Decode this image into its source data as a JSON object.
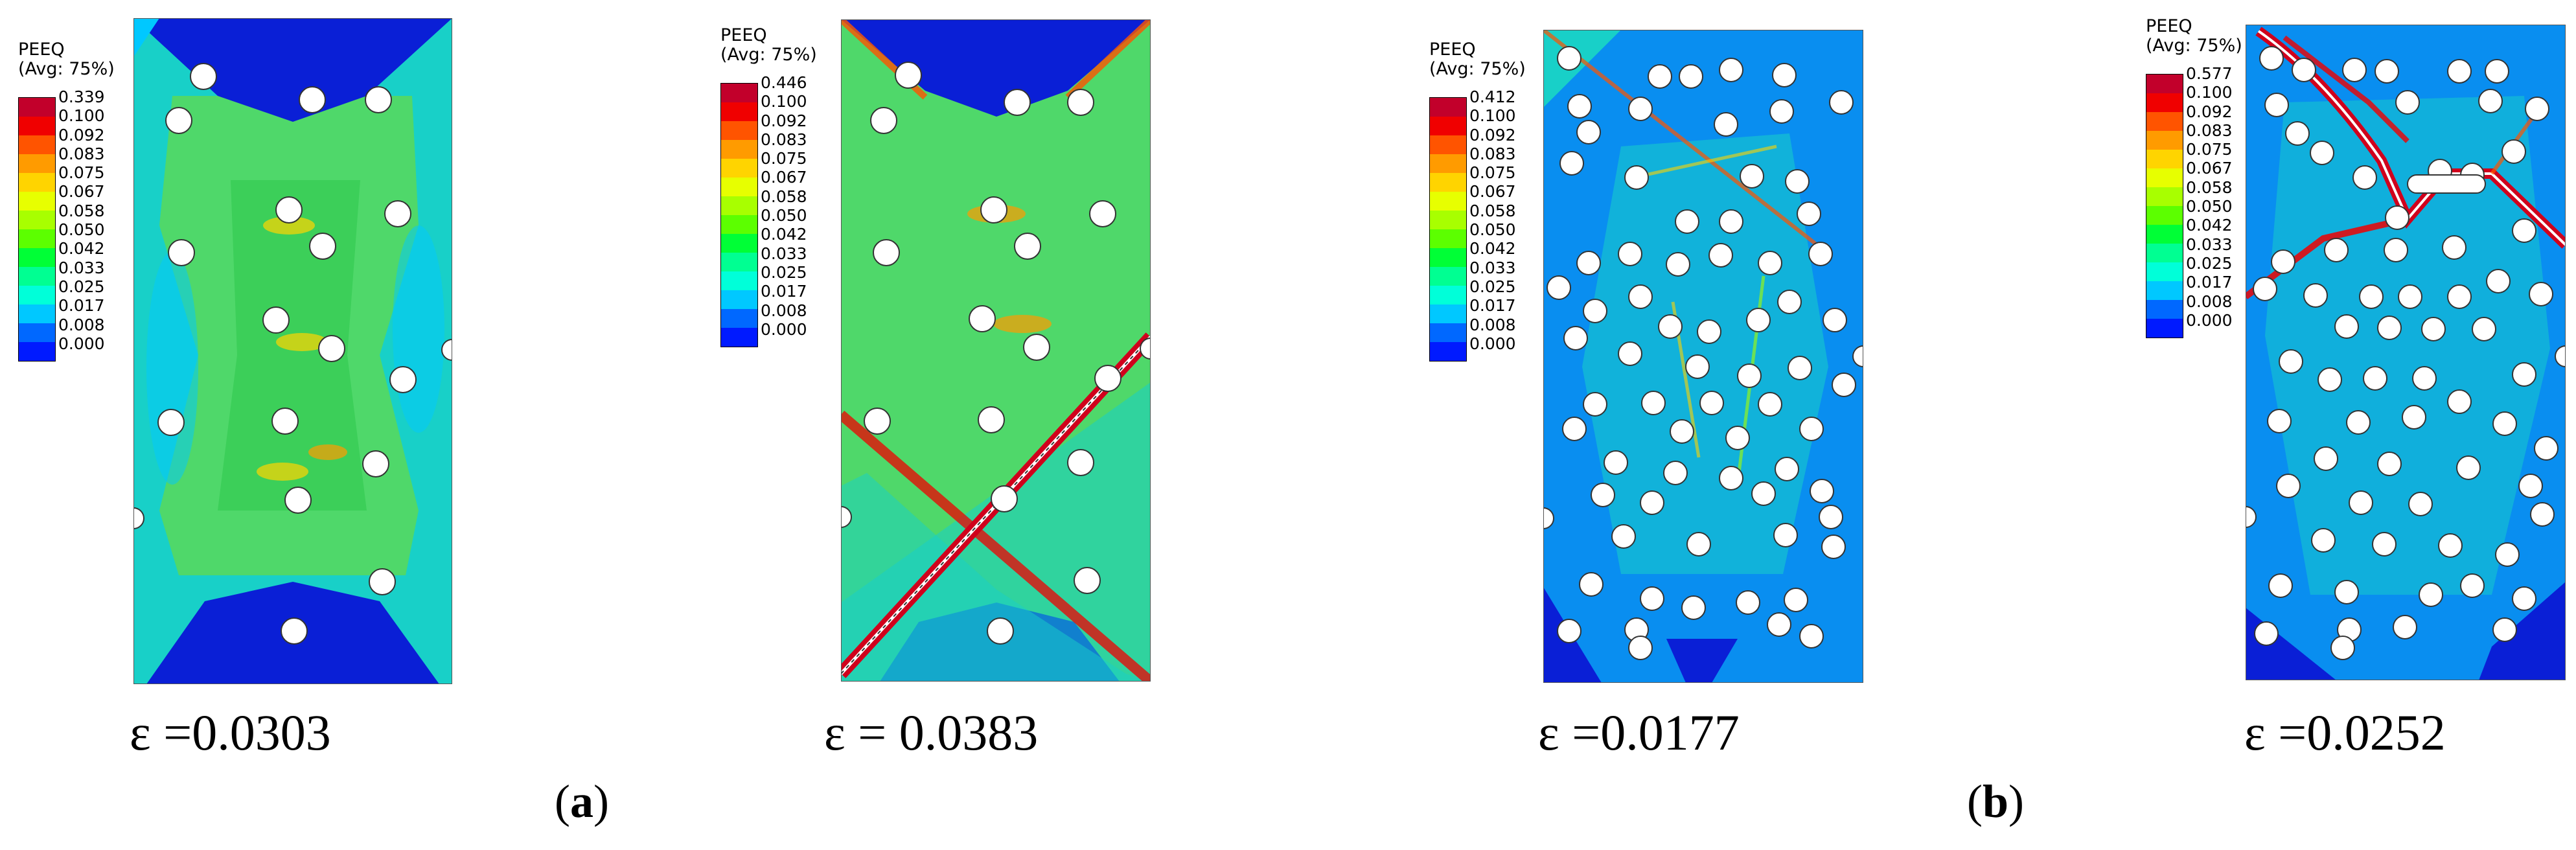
{
  "legend": {
    "title": "PEEQ",
    "subtitle": "(Avg: 75%)",
    "colors": [
      "#c2002b",
      "#f00000",
      "#ff5400",
      "#ff9b00",
      "#ffd400",
      "#e7ff00",
      "#a8ff00",
      "#5cff00",
      "#00ff36",
      "#00ff92",
      "#00ffd9",
      "#00c8ff",
      "#0068ff",
      "#001aff"
    ],
    "tick_values": [
      "0.100",
      "0.092",
      "0.083",
      "0.075",
      "0.067",
      "0.058",
      "0.050",
      "0.042",
      "0.033",
      "0.025",
      "0.017",
      "0.008",
      "0.000"
    ]
  },
  "panels": [
    {
      "max_value": "0.339",
      "strain_label": "ε =0.0303"
    },
    {
      "max_value": "0.446",
      "strain_label": "ε = 0.0383"
    },
    {
      "max_value": "0.412",
      "strain_label": "ε =0.0177"
    },
    {
      "max_value": "0.577",
      "strain_label": "ε =0.0252"
    }
  ],
  "subfigures": [
    {
      "open": "(",
      "letter": "a",
      "close": ")"
    },
    {
      "open": "(",
      "letter": "b",
      "close": ")"
    }
  ],
  "colors": {
    "bg_deep_blue": "#0a1fd6",
    "bg_cyan": "#18d0c8",
    "bg_green": "#4fd86a",
    "crack_red": "#d0001c"
  }
}
